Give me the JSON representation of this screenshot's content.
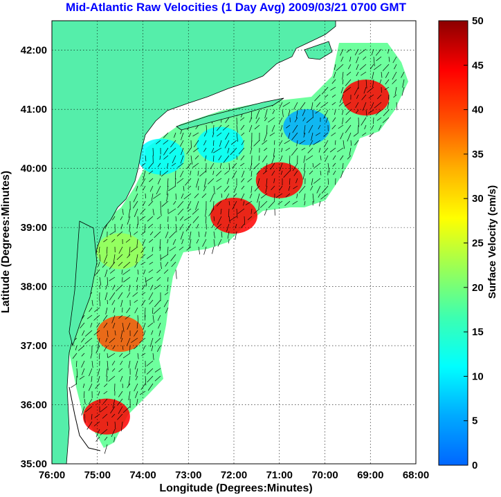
{
  "title": "Mid-Atlantic Raw Velocities (1 Day Avg) 2009/03/21 0700 GMT",
  "x_axis": {
    "label": "Longitude (Degrees:Minutes)",
    "ticks": [
      "76:00",
      "75:00",
      "74:00",
      "73:00",
      "72:00",
      "71:00",
      "70:00",
      "69:00",
      "68:00"
    ]
  },
  "y_axis": {
    "label": "Latitude (Degrees:Minutes)",
    "ticks": [
      "42:00",
      "41:00",
      "40:00",
      "39:00",
      "38:00",
      "37:00",
      "36:00",
      "35:00"
    ]
  },
  "colorbar": {
    "label": "Surface Velocity (cm/s)",
    "ticks": [
      "50",
      "45",
      "40",
      "35",
      "30",
      "25",
      "20",
      "15",
      "10",
      "5",
      "0"
    ],
    "min": 0,
    "max": 50,
    "gradient": [
      "#0066ff",
      "#00aaff",
      "#00ffff",
      "#3dffb0",
      "#9bff55",
      "#ffff00",
      "#ffb000",
      "#ff5000",
      "#ff0000",
      "#8b0000"
    ]
  },
  "colors": {
    "title": "#0000ff",
    "land": "#55eeaa",
    "ocean": "#ffffff",
    "grid": "#000000"
  },
  "chart_data": {
    "type": "heatmap",
    "xlim": [
      -76,
      -68
    ],
    "ylim": [
      35,
      42.5
    ],
    "value_range": [
      0,
      50
    ],
    "grid": true,
    "fields": [
      {
        "lon": -74.5,
        "lat": 37.2,
        "speed": 40
      },
      {
        "lon": -74.8,
        "lat": 35.8,
        "speed": 45
      },
      {
        "lon": -71.0,
        "lat": 39.8,
        "speed": 42
      },
      {
        "lon": -72.0,
        "lat": 39.2,
        "speed": 44
      },
      {
        "lon": -69.1,
        "lat": 41.2,
        "speed": 45
      },
      {
        "lon": -73.6,
        "lat": 40.2,
        "speed": 10
      },
      {
        "lon": -70.4,
        "lat": 40.7,
        "speed": 6
      },
      {
        "lon": -72.3,
        "lat": 40.4,
        "speed": 12
      },
      {
        "lon": -74.5,
        "lat": 38.6,
        "speed": 22
      }
    ]
  }
}
